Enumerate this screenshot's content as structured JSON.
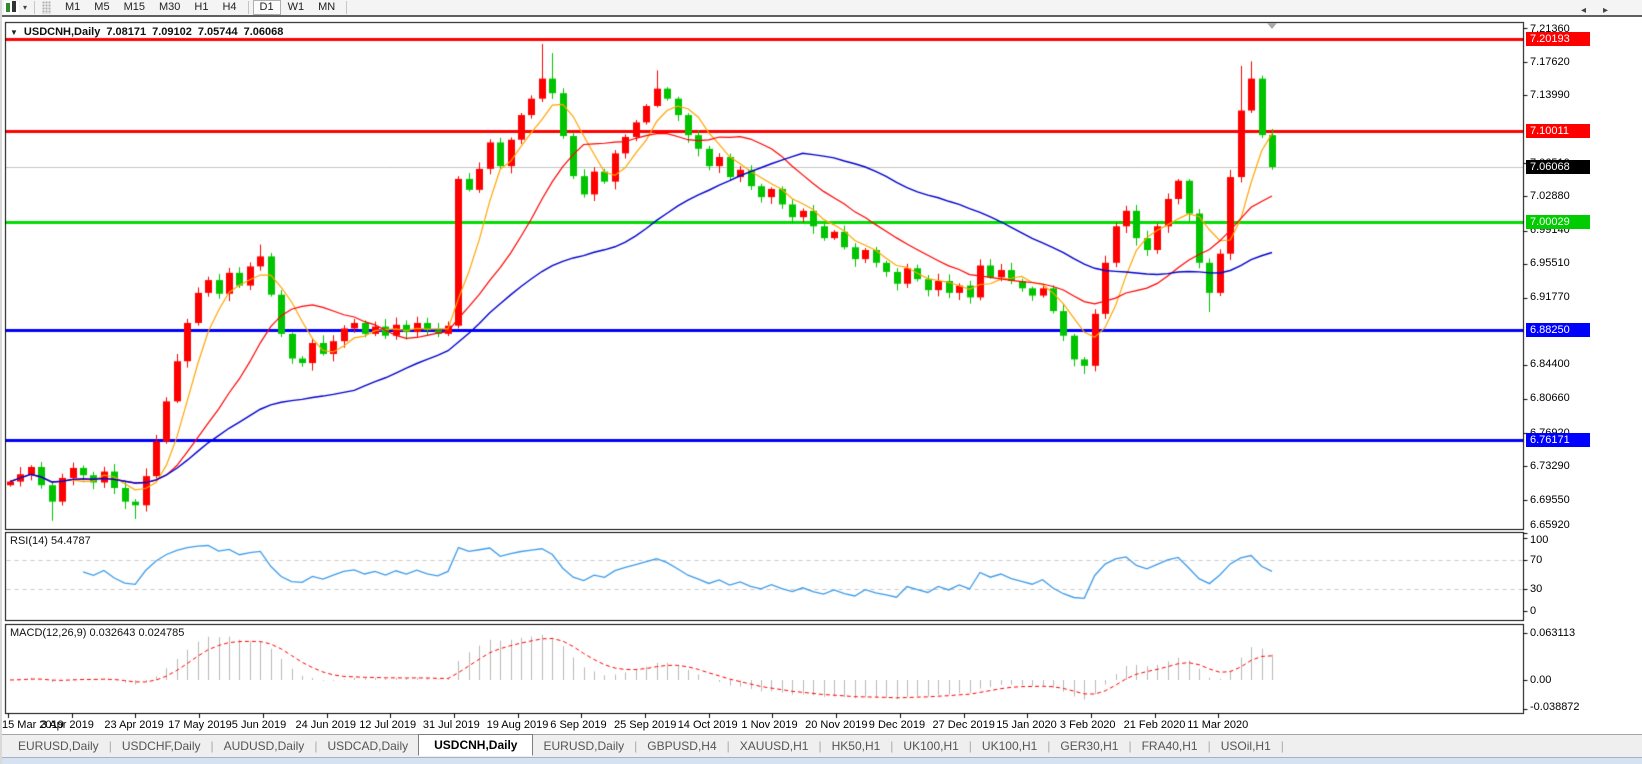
{
  "toolbar": {
    "timeframes": [
      "M1",
      "M5",
      "M15",
      "M30",
      "H1",
      "H4",
      "D1",
      "W1",
      "MN"
    ],
    "active_timeframe": "D1",
    "dropdown_caret": "▾"
  },
  "chart_data": {
    "type": "candlestick",
    "symbol": "USDCNH",
    "timeframe": "Daily",
    "title": {
      "dropdown": "▼",
      "symbol": "USDCNH,Daily",
      "open": "7.08171",
      "high": "7.09102",
      "low": "7.05744",
      "close": "7.06068"
    },
    "price_axis": {
      "range_top": 7.219,
      "range_bottom": 6.664,
      "ticks": [
        "7.21360",
        "7.17620",
        "7.13990",
        "7.06510",
        "7.02880",
        "6.99140",
        "6.95510",
        "6.91770",
        "6.84400",
        "6.80660",
        "6.76920",
        "6.73290",
        "6.69550",
        "6.65920"
      ]
    },
    "levels": [
      {
        "price": 7.20193,
        "text": "7.20193",
        "color": "#ff0000",
        "thickness": 3,
        "badge_bg": "#ff0000",
        "badge_fg": "#ffffff",
        "role": "resistance"
      },
      {
        "price": 7.10011,
        "text": "7.10011",
        "color": "#ff0000",
        "thickness": 3,
        "badge_bg": "#ff0000",
        "badge_fg": "#ffffff",
        "role": "resistance"
      },
      {
        "price": 7.06068,
        "text": "7.06068",
        "color": "#c4c4c4",
        "thickness": 1,
        "badge_bg": "#000000",
        "badge_fg": "#ffffff",
        "role": "current-price"
      },
      {
        "price": 7.00029,
        "text": "7.00029",
        "color": "#00dd00",
        "thickness": 3,
        "badge_bg": "#00cc00",
        "badge_fg": "#ffffff",
        "role": "support"
      },
      {
        "price": 6.8825,
        "text": "6.88250",
        "color": "#0000ff",
        "thickness": 3,
        "badge_bg": "#0000ff",
        "badge_fg": "#ffffff",
        "role": "support"
      },
      {
        "price": 6.76171,
        "text": "6.76171",
        "color": "#0000ff",
        "thickness": 3,
        "badge_bg": "#0000ff",
        "badge_fg": "#ffffff",
        "role": "support"
      }
    ],
    "x_labels": [
      "15 Mar 2019",
      "3 Apr 2019",
      "23 Apr 2019",
      "17 May 2019",
      "5 Jun 2019",
      "24 Jun 2019",
      "12 Jul 2019",
      "31 Jul 2019",
      "19 Aug 2019",
      "6 Sep 2019",
      "25 Sep 2019",
      "14 Oct 2019",
      "1 Nov 2019",
      "20 Nov 2019",
      "9 Dec 2019",
      "27 Dec 2019",
      "15 Jan 2020",
      "3 Feb 2020",
      "21 Feb 2020",
      "11 Mar 2020"
    ],
    "candles": {
      "up_color": "#ff0000",
      "down_color": "#00c400",
      "first_open": 6.712,
      "closes": [
        6.716,
        6.724,
        6.732,
        6.712,
        6.694,
        6.72,
        6.731,
        6.723,
        6.715,
        6.727,
        6.709,
        6.694,
        6.69,
        6.722,
        6.76,
        6.804,
        6.848,
        6.89,
        6.923,
        6.937,
        6.922,
        6.945,
        6.931,
        6.952,
        6.963,
        6.921,
        6.878,
        6.851,
        6.846,
        6.868,
        6.856,
        6.87,
        6.884,
        6.89,
        6.878,
        6.886,
        6.876,
        6.888,
        6.88,
        6.89,
        6.882,
        6.878,
        6.887,
        7.048,
        7.036,
        7.059,
        7.088,
        7.062,
        7.091,
        7.118,
        7.136,
        7.158,
        7.142,
        7.095,
        7.051,
        7.031,
        7.056,
        7.045,
        7.076,
        7.094,
        7.11,
        7.128,
        7.147,
        7.136,
        7.118,
        7.096,
        7.081,
        7.062,
        7.072,
        7.05,
        7.058,
        7.04,
        7.028,
        7.037,
        7.02,
        7.006,
        7.013,
        6.996,
        6.983,
        6.99,
        6.973,
        6.96,
        6.97,
        6.956,
        6.946,
        6.933,
        6.95,
        6.938,
        6.926,
        6.936,
        6.923,
        6.931,
        6.918,
        6.953,
        6.94,
        6.948,
        6.936,
        6.928,
        6.92,
        6.928,
        6.903,
        6.876,
        6.85,
        6.843,
        6.9,
        6.956,
        6.996,
        7.013,
        6.983,
        6.97,
        6.996,
        7.026,
        7.046,
        7.01,
        6.956,
        6.923,
        6.966,
        7.05,
        7.123,
        7.158,
        7.096,
        7.061
      ],
      "wick_overrides": {
        "4": {
          "low": 6.673
        },
        "12": {
          "low": 6.675
        },
        "24": {
          "high": 6.976
        },
        "43": {
          "low": 6.884
        },
        "51": {
          "high": 7.196
        },
        "52": {
          "high": 7.186
        },
        "62": {
          "high": 7.167
        },
        "103": {
          "low": 6.834
        },
        "115": {
          "low": 6.902
        },
        "118": {
          "high": 7.172
        },
        "119": {
          "high": 7.177
        }
      }
    },
    "moving_averages": [
      {
        "name": "fast",
        "period": 5,
        "color": "#ffa500",
        "width": 1.2
      },
      {
        "name": "medium",
        "period": 13,
        "color": "#ff0000",
        "width": 1.2
      },
      {
        "name": "slow",
        "period": 34,
        "color": "#0000cd",
        "width": 1.4
      }
    ],
    "rsi": {
      "label": "RSI(14)",
      "value": "54.4787",
      "period": 14,
      "line_color": "#3d9be9",
      "level_lines": [
        70,
        30
      ],
      "axis_ticks": [
        {
          "text": "100",
          "value": 100
        },
        {
          "text": "70",
          "value": 70
        },
        {
          "text": "30",
          "value": 30
        },
        {
          "text": "0",
          "value": 0
        }
      ]
    },
    "macd": {
      "label": "MACD(12,26,9)",
      "value": "0.032643",
      "signal_value": "0.024785",
      "fast": 12,
      "slow": 26,
      "signal_period": 9,
      "hist_color": "#b8b8b8",
      "signal_color": "#ff0000",
      "axis_ticks": [
        {
          "text": "0.063113",
          "value": 0.063113
        },
        {
          "text": "0.00",
          "value": 0
        },
        {
          "text": "-0.038872",
          "value": -0.038872
        }
      ]
    }
  },
  "tabs": {
    "items": [
      {
        "label": "EURUSD,Daily",
        "active": false
      },
      {
        "label": "USDCHF,Daily",
        "active": false
      },
      {
        "label": "AUDUSD,Daily",
        "active": false
      },
      {
        "label": "USDCAD,Daily",
        "active": false
      },
      {
        "label": "USDCNH,Daily",
        "active": true
      },
      {
        "label": "EURUSD,Daily",
        "active": false
      },
      {
        "label": "GBPUSD,H4",
        "active": false
      },
      {
        "label": "XAUUSD,H1",
        "active": false
      },
      {
        "label": "HK50,H1",
        "active": false
      },
      {
        "label": "UK100,H1",
        "active": false
      },
      {
        "label": "UK100,H1",
        "active": false
      },
      {
        "label": "GER30,H1",
        "active": false
      },
      {
        "label": "FRA40,H1",
        "active": false
      },
      {
        "label": "USOil,H1",
        "active": false
      }
    ],
    "scroll_left": "◂",
    "scroll_right": "▸"
  }
}
